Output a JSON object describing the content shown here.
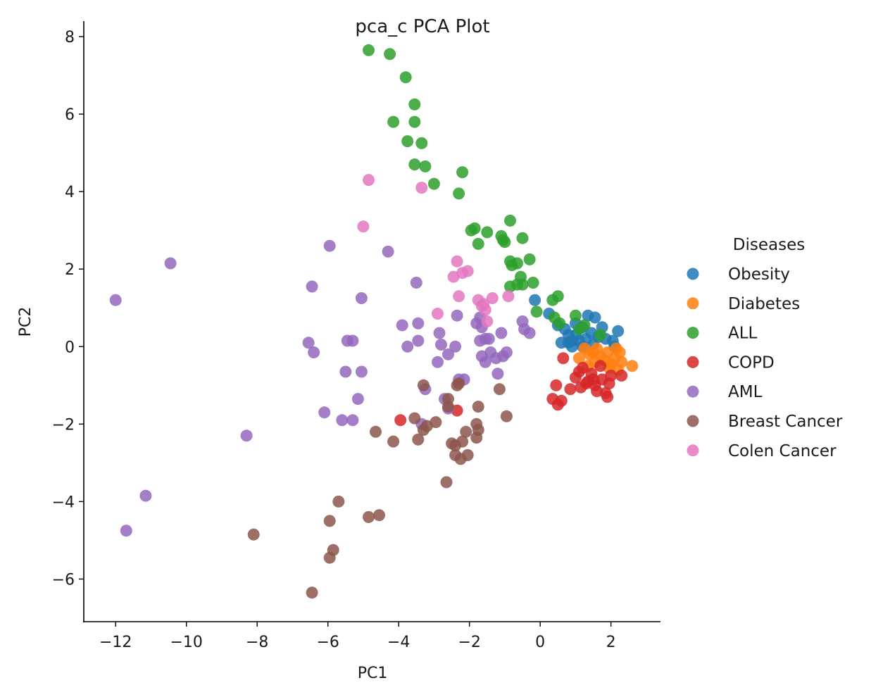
{
  "chart_data": {
    "type": "scatter",
    "title": "pca_c PCA Plot",
    "xlabel": "PC1",
    "ylabel": "PC2",
    "xlim": [
      -12.9,
      3.4
    ],
    "ylim": [
      -7.1,
      8.4
    ],
    "xticks": [
      -12,
      -10,
      -8,
      -6,
      -4,
      -2,
      0,
      2
    ],
    "xtick_labels": [
      "−12",
      "−10",
      "−8",
      "−6",
      "−4",
      "−2",
      "0",
      "2"
    ],
    "yticks": [
      8,
      6,
      4,
      2,
      0,
      -2,
      -4,
      -6
    ],
    "ytick_labels": [
      "8",
      "6",
      "4",
      "2",
      "0",
      "−2",
      "−4",
      "−6"
    ],
    "grid": false,
    "legend_placement": "right",
    "legend_title": "Diseases",
    "series": [
      {
        "name": "Obesity",
        "color": "#1f77b4",
        "points": [
          [
            -0.15,
            1.2
          ],
          [
            0.25,
            0.85
          ],
          [
            0.5,
            0.55
          ],
          [
            0.7,
            0.45
          ],
          [
            0.8,
            0.3
          ],
          [
            0.9,
            0.15
          ],
          [
            1.0,
            0.6
          ],
          [
            1.2,
            0.5
          ],
          [
            1.35,
            0.8
          ],
          [
            1.55,
            0.75
          ],
          [
            1.75,
            0.5
          ],
          [
            2.2,
            0.4
          ],
          [
            0.6,
            0.1
          ],
          [
            0.8,
            0.1
          ],
          [
            1.0,
            0.3
          ],
          [
            1.1,
            0.15
          ],
          [
            1.3,
            0.2
          ],
          [
            1.45,
            0.35
          ],
          [
            1.65,
            0.25
          ],
          [
            1.85,
            0.2
          ],
          [
            2.05,
            0.15
          ],
          [
            2.1,
            0.0
          ],
          [
            0.9,
            0.0
          ],
          [
            1.2,
            0.0
          ],
          [
            1.5,
            0.05
          ]
        ]
      },
      {
        "name": "Diabetes",
        "color": "#ff7f0e",
        "points": [
          [
            1.1,
            -0.3
          ],
          [
            1.25,
            -0.05
          ],
          [
            1.4,
            -0.2
          ],
          [
            1.55,
            -0.4
          ],
          [
            1.6,
            -0.05
          ],
          [
            1.7,
            -0.25
          ],
          [
            1.8,
            -0.35
          ],
          [
            1.9,
            -0.15
          ],
          [
            2.0,
            -0.45
          ],
          [
            2.1,
            -0.3
          ],
          [
            2.2,
            -0.6
          ],
          [
            2.25,
            -0.15
          ],
          [
            2.3,
            -0.4
          ],
          [
            2.6,
            -0.5
          ],
          [
            1.35,
            -0.5
          ],
          [
            1.95,
            -0.55
          ],
          [
            2.15,
            -0.05
          ],
          [
            1.5,
            -0.15
          ]
        ]
      },
      {
        "name": "ALL",
        "color": "#2ca02c",
        "points": [
          [
            -4.85,
            7.65
          ],
          [
            -4.25,
            7.55
          ],
          [
            -3.8,
            6.95
          ],
          [
            -3.55,
            6.25
          ],
          [
            -3.55,
            5.8
          ],
          [
            -4.15,
            5.8
          ],
          [
            -3.75,
            5.3
          ],
          [
            -3.35,
            5.25
          ],
          [
            -3.55,
            4.7
          ],
          [
            -3.25,
            4.65
          ],
          [
            -2.2,
            4.5
          ],
          [
            -3.0,
            4.2
          ],
          [
            -2.3,
            3.95
          ],
          [
            -0.85,
            3.25
          ],
          [
            -1.95,
            3.0
          ],
          [
            -1.85,
            3.05
          ],
          [
            -1.5,
            2.95
          ],
          [
            -1.1,
            2.85
          ],
          [
            -0.5,
            2.8
          ],
          [
            -1.05,
            2.75
          ],
          [
            -1.0,
            2.7
          ],
          [
            -1.75,
            2.65
          ],
          [
            -0.3,
            2.25
          ],
          [
            -0.85,
            2.2
          ],
          [
            -0.65,
            2.15
          ],
          [
            -0.8,
            2.1
          ],
          [
            -0.55,
            1.8
          ],
          [
            -0.2,
            1.65
          ],
          [
            -0.5,
            1.6
          ],
          [
            -0.65,
            1.6
          ],
          [
            -0.85,
            1.55
          ],
          [
            0.5,
            1.3
          ],
          [
            0.35,
            1.2
          ],
          [
            -0.1,
            0.9
          ],
          [
            0.55,
            0.6
          ],
          [
            1.0,
            0.8
          ],
          [
            1.1,
            0.45
          ],
          [
            1.25,
            0.55
          ],
          [
            1.7,
            0.3
          ],
          [
            0.4,
            0.75
          ]
        ]
      },
      {
        "name": "COPD",
        "color": "#d62728",
        "points": [
          [
            -3.95,
            -1.9
          ],
          [
            -2.35,
            -1.65
          ],
          [
            0.65,
            -0.3
          ],
          [
            0.45,
            -1.0
          ],
          [
            0.35,
            -1.35
          ],
          [
            0.5,
            -1.5
          ],
          [
            0.6,
            -1.4
          ],
          [
            0.85,
            -1.1
          ],
          [
            1.0,
            -0.8
          ],
          [
            1.15,
            -1.05
          ],
          [
            1.2,
            -0.55
          ],
          [
            1.35,
            -0.9
          ],
          [
            1.45,
            -0.7
          ],
          [
            1.55,
            -1.0
          ],
          [
            1.6,
            -1.15
          ],
          [
            1.7,
            -0.5
          ],
          [
            1.75,
            -0.85
          ],
          [
            1.85,
            -1.2
          ],
          [
            1.9,
            -1.3
          ],
          [
            1.95,
            -0.95
          ],
          [
            2.0,
            -0.75
          ],
          [
            2.3,
            -0.75
          ],
          [
            1.3,
            -0.95
          ],
          [
            1.1,
            -0.65
          ],
          [
            1.5,
            -0.85
          ]
        ]
      },
      {
        "name": "AML",
        "color": "#9467bd",
        "points": [
          [
            -12.0,
            1.2
          ],
          [
            -10.45,
            2.15
          ],
          [
            -11.15,
            -3.85
          ],
          [
            -11.7,
            -4.75
          ],
          [
            -8.3,
            -2.3
          ],
          [
            -6.45,
            1.55
          ],
          [
            -5.95,
            2.6
          ],
          [
            -6.55,
            0.1
          ],
          [
            -6.4,
            -0.15
          ],
          [
            -6.1,
            -1.7
          ],
          [
            -5.6,
            -1.9
          ],
          [
            -5.3,
            -1.9
          ],
          [
            -5.45,
            0.15
          ],
          [
            -5.3,
            0.15
          ],
          [
            -5.05,
            1.25
          ],
          [
            -5.05,
            -0.65
          ],
          [
            -5.15,
            -1.35
          ],
          [
            -5.5,
            -0.65
          ],
          [
            -4.3,
            2.45
          ],
          [
            -3.9,
            0.55
          ],
          [
            -3.5,
            1.65
          ],
          [
            -3.75,
            0.0
          ],
          [
            -3.45,
            0.15
          ],
          [
            -3.45,
            0.6
          ],
          [
            -3.25,
            -1.1
          ],
          [
            -3.35,
            -2.0
          ],
          [
            -2.85,
            0.35
          ],
          [
            -2.8,
            0.05
          ],
          [
            -2.9,
            -0.4
          ],
          [
            -2.6,
            -0.2
          ],
          [
            -2.6,
            -1.6
          ],
          [
            -2.7,
            -1.35
          ],
          [
            -2.35,
            0.8
          ],
          [
            -2.3,
            -0.85
          ],
          [
            -2.15,
            -0.85
          ],
          [
            -2.4,
            0.0
          ],
          [
            -1.8,
            0.6
          ],
          [
            -1.7,
            0.75
          ],
          [
            -1.7,
            0.15
          ],
          [
            -1.55,
            0.2
          ],
          [
            -1.65,
            -0.25
          ],
          [
            -1.55,
            -0.4
          ],
          [
            -1.4,
            -0.15
          ],
          [
            -1.25,
            -0.3
          ],
          [
            -1.1,
            0.35
          ],
          [
            -1.05,
            -0.25
          ],
          [
            -1.2,
            -0.7
          ],
          [
            -0.95,
            -0.15
          ],
          [
            -0.5,
            0.65
          ],
          [
            -0.45,
            0.45
          ],
          [
            -0.3,
            0.35
          ],
          [
            -1.65,
            0.5
          ],
          [
            -1.45,
            0.2
          ]
        ]
      },
      {
        "name": "Breast Cancer",
        "color": "#8c564b",
        "points": [
          [
            -6.45,
            -6.35
          ],
          [
            -5.95,
            -5.45
          ],
          [
            -5.85,
            -5.25
          ],
          [
            -5.95,
            -4.5
          ],
          [
            -5.7,
            -4.0
          ],
          [
            -4.85,
            -4.4
          ],
          [
            -4.55,
            -4.35
          ],
          [
            -8.1,
            -4.85
          ],
          [
            -4.65,
            -2.2
          ],
          [
            -4.15,
            -2.45
          ],
          [
            -3.55,
            -1.85
          ],
          [
            -3.45,
            -2.4
          ],
          [
            -3.3,
            -2.15
          ],
          [
            -3.2,
            -2.05
          ],
          [
            -3.3,
            -1.0
          ],
          [
            -2.95,
            -1.95
          ],
          [
            -2.6,
            -1.55
          ],
          [
            -2.6,
            -1.35
          ],
          [
            -2.5,
            -2.5
          ],
          [
            -2.4,
            -2.55
          ],
          [
            -2.4,
            -2.8
          ],
          [
            -2.25,
            -2.9
          ],
          [
            -2.2,
            -2.45
          ],
          [
            -2.1,
            -2.2
          ],
          [
            -2.05,
            -2.8
          ],
          [
            -1.8,
            -2.35
          ],
          [
            -1.8,
            -2.0
          ],
          [
            -1.75,
            -1.55
          ],
          [
            -1.75,
            -2.15
          ],
          [
            -1.15,
            -1.1
          ],
          [
            -0.95,
            -1.8
          ],
          [
            -2.65,
            -3.5
          ],
          [
            -2.35,
            -1.0
          ],
          [
            -2.3,
            -0.95
          ]
        ]
      },
      {
        "name": "Colen Cancer",
        "color": "#e377c2",
        "points": [
          [
            -4.85,
            4.3
          ],
          [
            -3.35,
            4.1
          ],
          [
            -5.0,
            3.1
          ],
          [
            -2.35,
            2.2
          ],
          [
            -2.2,
            1.9
          ],
          [
            -2.05,
            1.95
          ],
          [
            -2.45,
            1.8
          ],
          [
            -2.3,
            1.3
          ],
          [
            -1.75,
            1.2
          ],
          [
            -1.35,
            1.25
          ],
          [
            -0.9,
            1.3
          ],
          [
            -1.6,
            1.1
          ],
          [
            -1.55,
            0.95
          ],
          [
            -1.5,
            0.65
          ],
          [
            -2.9,
            0.85
          ],
          [
            -1.65,
            1.05
          ]
        ]
      }
    ]
  }
}
